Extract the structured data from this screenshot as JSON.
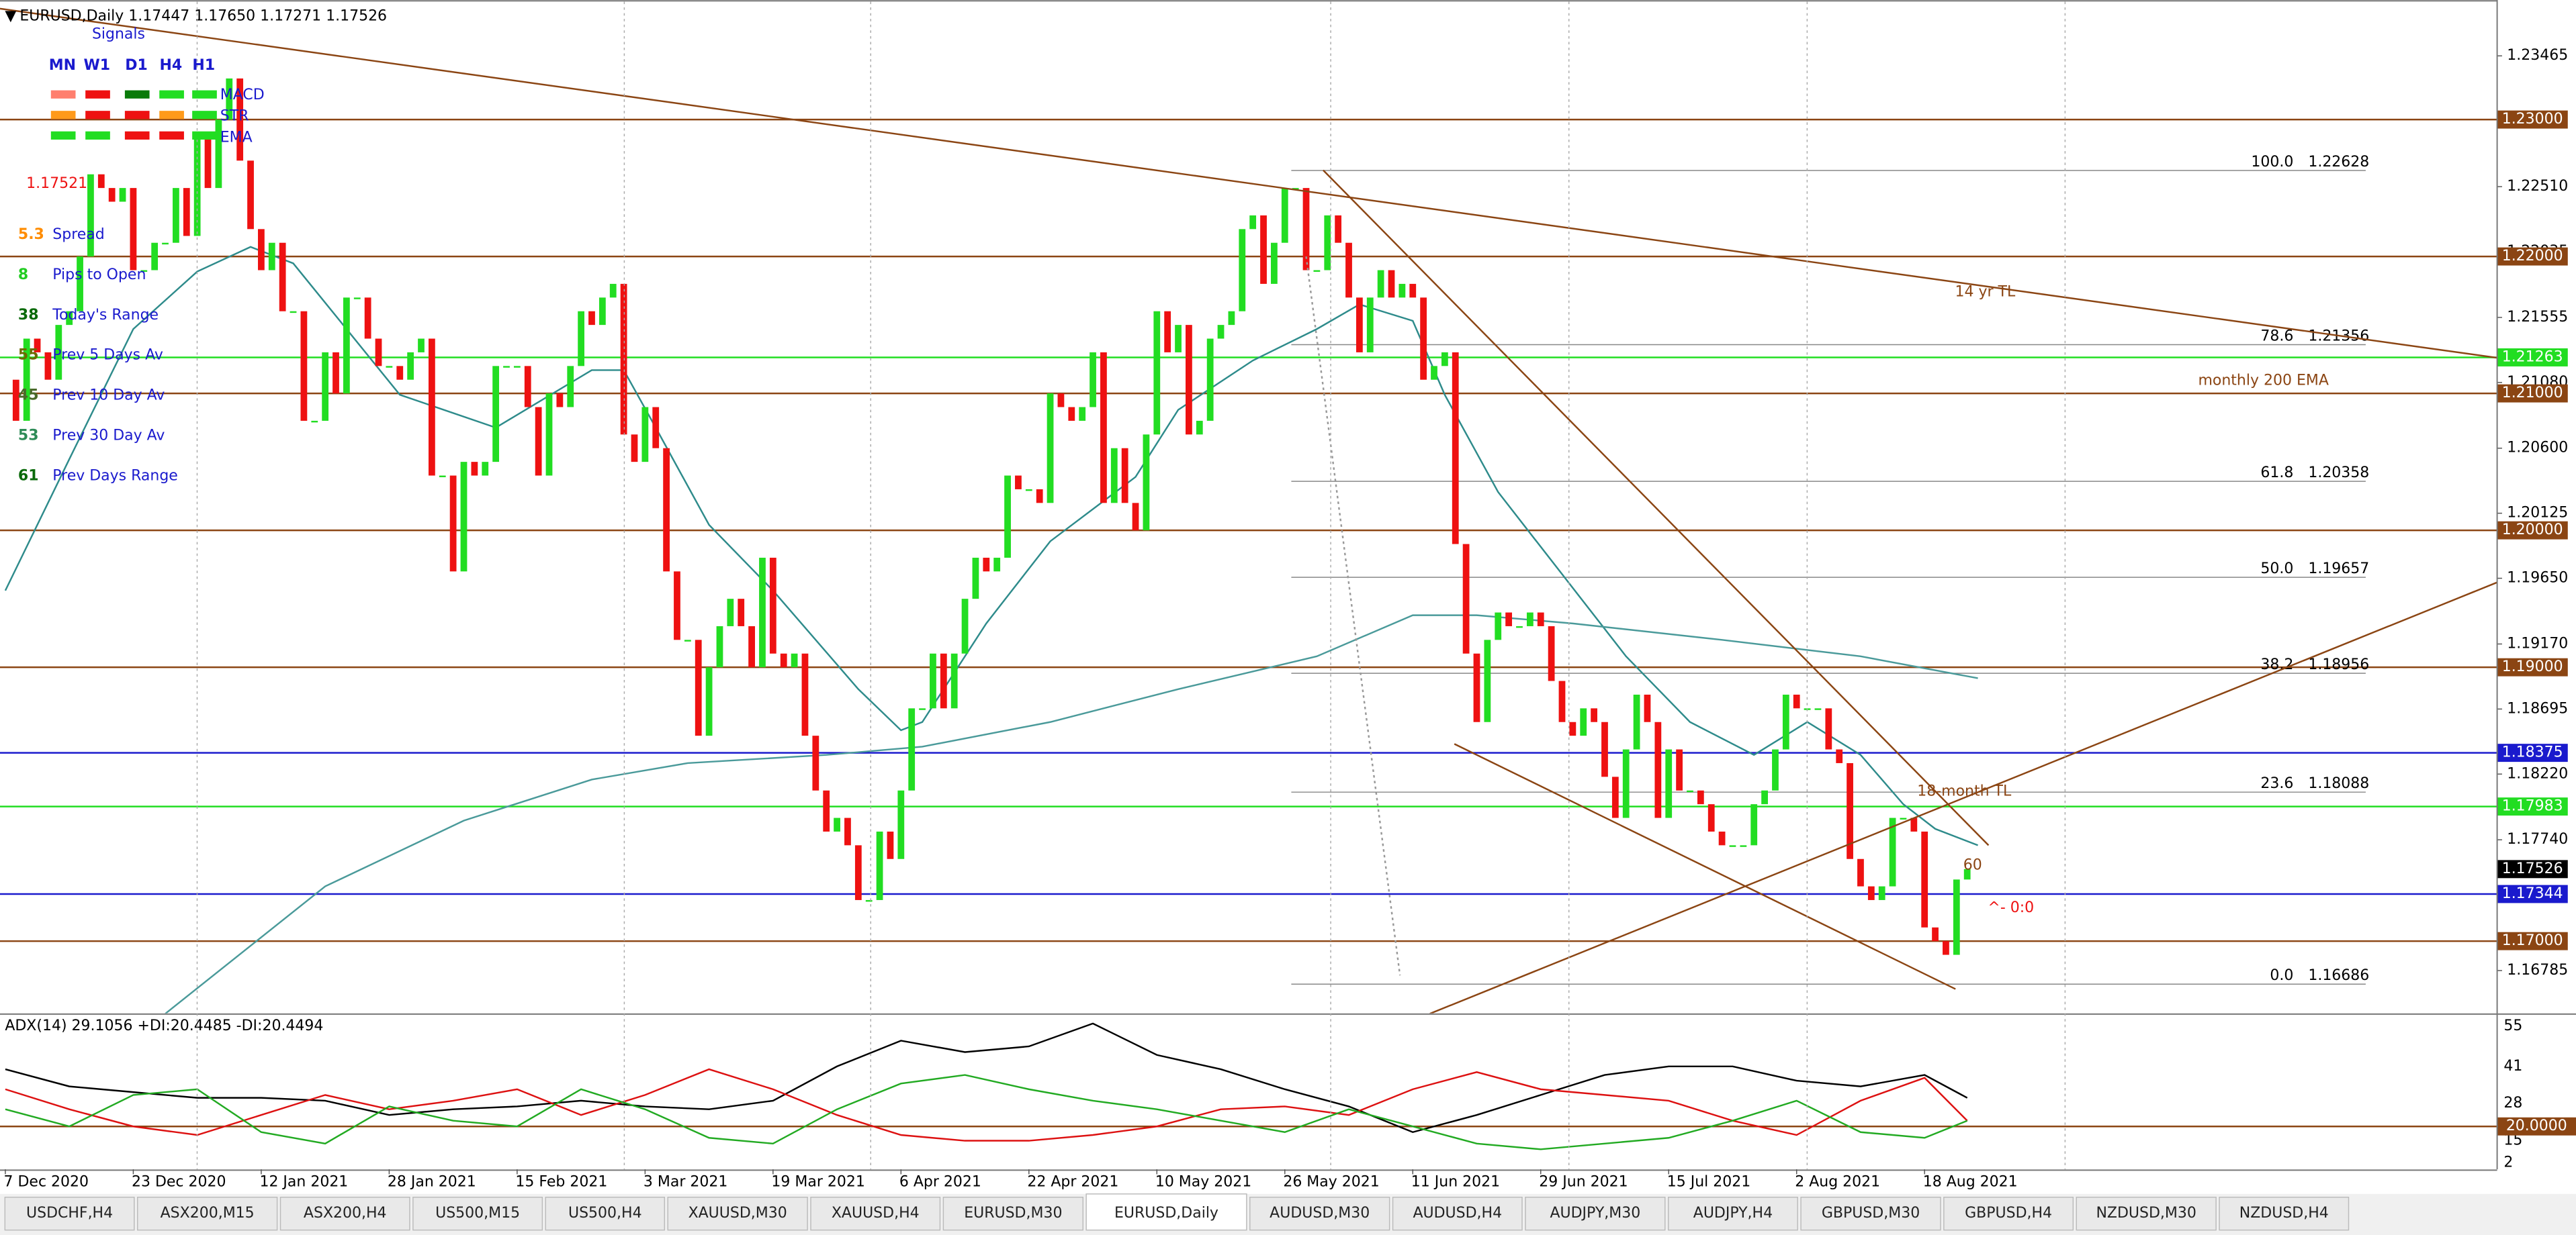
{
  "header": {
    "symbol_line": "EURUSD,Daily  1.17447 1.17650 1.17271 1.17526"
  },
  "signals": {
    "title": "Signals",
    "timeframes": [
      "MN",
      "W1",
      "D1",
      "H4",
      "H1"
    ],
    "rows": [
      "MACD",
      "STR",
      "EMA"
    ],
    "price": 1.17521,
    "stats": [
      {
        "value": 5.3,
        "label": "Spread"
      },
      {
        "value": 8,
        "label": "Pips to Open"
      },
      {
        "value": 38,
        "label": "Today's Range"
      },
      {
        "value": 55,
        "label": "Prev 5 Days Av"
      },
      {
        "value": 45,
        "label": "Prev 10 Day Av"
      },
      {
        "value": 53,
        "label": "Prev 30 Day Av"
      },
      {
        "value": 61,
        "label": "Prev Days Range"
      }
    ]
  },
  "chart_data": [
    {
      "type": "candlestick",
      "up_color": "#22dd22",
      "down_color": "#ee1111",
      "close": [
        1.211,
        1.208,
        1.214,
        1.213,
        1.211,
        1.215,
        1.216,
        1.22,
        1.226,
        1.225,
        1.224,
        1.225,
        1.219,
        1.219,
        1.221,
        1.221,
        1.225,
        1.2215,
        1.229,
        1.225,
        1.23,
        1.233,
        1.227,
        1.222,
        1.219,
        1.221,
        1.216,
        1.216,
        1.208,
        1.208,
        1.213,
        1.21,
        1.217,
        1.217,
        1.214,
        1.212,
        1.212,
        1.211,
        1.213,
        1.214,
        1.204,
        1.204,
        1.197,
        1.205,
        1.204,
        1.205,
        1.212,
        1.212,
        1.212,
        1.209,
        1.204,
        1.21,
        1.209,
        1.212,
        1.216,
        1.215,
        1.217,
        1.218,
        1.207,
        1.205,
        1.209,
        1.206,
        1.197,
        1.192,
        1.192,
        1.185,
        1.19,
        1.193,
        1.195,
        1.193,
        1.19,
        1.198,
        1.191,
        1.19,
        1.191,
        1.185,
        1.181,
        1.178,
        1.179,
        1.177,
        1.173,
        1.173,
        1.178,
        1.176,
        1.181,
        1.187,
        1.187,
        1.191,
        1.187,
        1.191,
        1.195,
        1.198,
        1.197,
        1.198,
        1.204,
        1.203,
        1.203,
        1.202,
        1.21,
        1.209,
        1.208,
        1.209,
        1.213,
        1.202,
        1.206,
        1.202,
        1.2,
        1.207,
        1.216,
        1.213,
        1.215,
        1.207,
        1.208,
        1.214,
        1.215,
        1.216,
        1.222,
        1.223,
        1.218,
        1.221,
        1.225,
        1.225,
        1.219,
        1.219,
        1.223,
        1.221,
        1.217,
        1.213,
        1.217,
        1.219,
        1.217,
        1.218,
        1.217,
        1.211,
        1.212,
        1.213,
        1.199,
        1.191,
        1.186,
        1.192,
        1.194,
        1.193,
        1.193,
        1.194,
        1.193,
        1.189,
        1.186,
        1.185,
        1.187,
        1.186,
        1.182,
        1.179,
        1.184,
        1.188,
        1.186,
        1.179,
        1.184,
        1.181,
        1.181,
        1.18,
        1.178,
        1.177,
        1.177,
        1.177,
        1.18,
        1.181,
        1.184,
        1.188,
        1.187,
        1.187,
        1.187,
        1.184,
        1.183,
        1.176,
        1.174,
        1.173,
        1.174,
        1.179,
        1.179,
        1.178,
        1.171,
        1.17,
        1.169,
        1.1745,
        1.17526
      ],
      "xlim": [
        -0.5,
        233.7
      ],
      "ylim": [
        1.16473,
        1.23873
      ],
      "yticks": [
        1.23465,
        {
          "value": 1.2251,
          "label": "1.22510"
        },
        1.22035,
        1.21555,
        {
          "value": 1.2108,
          "label": "1.21080"
        },
        {
          "value": 1.206,
          "label": "1.20600"
        },
        1.20125,
        {
          "value": 1.1965,
          "label": "1.19650"
        },
        {
          "value": 1.1917,
          "label": "1.19170"
        },
        1.18695,
        {
          "value": 1.1822,
          "label": "1.18220"
        },
        {
          "value": 1.1774,
          "label": "1.17740"
        },
        1.16785
      ],
      "xticks": [
        {
          "value": 0,
          "label": "7 Dec 2020"
        },
        {
          "value": 12,
          "label": "23 Dec 2020"
        },
        {
          "value": 24,
          "label": "12 Jan 2021"
        },
        {
          "value": 36,
          "label": "28 Jan 2021"
        },
        {
          "value": 48,
          "label": "15 Feb 2021"
        },
        {
          "value": 60,
          "label": "3 Mar 2021"
        },
        {
          "value": 72,
          "label": "19 Mar 2021"
        },
        {
          "value": 84,
          "label": "6 Apr 2021"
        },
        {
          "value": 96,
          "label": "22 Apr 2021"
        },
        {
          "value": 108,
          "label": "10 May 2021"
        },
        {
          "value": 120,
          "label": "26 May 2021"
        },
        {
          "value": 132,
          "label": "11 Jun 2021"
        },
        {
          "value": 144,
          "label": "29 Jun 2021"
        },
        {
          "value": 156,
          "label": "15 Jul 2021"
        },
        {
          "value": 168,
          "label": "2 Aug 2021"
        },
        {
          "value": 180,
          "label": "18 Aug 2021"
        }
      ],
      "levels": [
        {
          "value": 1.23,
          "label": "1.23000",
          "color": "#8b4513"
        },
        {
          "value": 1.22,
          "label": "1.22000",
          "color": "#8b4513"
        },
        {
          "value": 1.21263,
          "color": "#22dd22"
        },
        {
          "value": 1.21,
          "label": "1.21000",
          "color": "#8b4513"
        },
        {
          "value": 1.2,
          "label": "1.20000",
          "color": "#8b4513"
        },
        {
          "value": 1.19,
          "label": "1.19000",
          "color": "#8b4513"
        },
        {
          "value": 1.18375,
          "color": "#1a1acd"
        },
        {
          "value": 1.17983,
          "color": "#22dd22"
        },
        {
          "value": 1.17526,
          "color": "#000000",
          "line": false
        },
        {
          "value": 1.17344,
          "color": "#1a1acd"
        },
        {
          "value": 1.17,
          "label": "1.17000",
          "color": "#8b4513"
        }
      ],
      "fib": [
        {
          "label": "100.0",
          "value": 1.22628
        },
        {
          "label": "78.6",
          "value": 1.21356
        },
        {
          "label": "61.8",
          "value": 1.20358
        },
        {
          "label": "50.0",
          "value": 1.19657
        },
        {
          "label": "38.2",
          "value": 1.18956
        },
        {
          "label": "23.6",
          "value": 1.18088
        },
        {
          "label": "0.0",
          "value": 1.16686
        }
      ],
      "trendlines": [
        {
          "x": [
            -0.5,
            233.7
          ],
          "y": [
            1.2381,
            1.2126
          ],
          "color": "#8b4513"
        },
        {
          "x": [
            123.6,
            186
          ],
          "y": [
            1.2263,
            1.177
          ],
          "color": "#8b4513"
        },
        {
          "x": [
            133.6,
            233.7
          ],
          "y": [
            1.1647,
            1.1962
          ],
          "color": "#8b4513"
        },
        {
          "x": [
            135.9,
            182.9
          ],
          "y": [
            1.1844,
            1.1665
          ],
          "color": "#8b4513"
        },
        {
          "x": [
            122,
            130.8
          ],
          "y": [
            1.22,
            1.1675
          ],
          "color": "#999999",
          "style": "dotted"
        }
      ],
      "lines": [
        {
          "color": "#2e8b8b",
          "x": [
            0,
            6,
            12,
            18,
            23,
            27,
            37,
            46,
            55,
            58,
            61,
            66,
            72,
            80,
            84,
            86,
            92,
            98,
            106,
            110,
            117,
            123,
            127,
            132,
            135,
            140,
            146,
            152,
            158,
            164,
            169,
            174,
            178,
            181,
            185
          ],
          "values": [
            1.1956,
            1.2052,
            1.2147,
            1.2189,
            1.2207,
            1.2195,
            1.2099,
            1.2075,
            1.2117,
            1.2117,
            1.2075,
            1.2004,
            1.1956,
            1.1884,
            1.1854,
            1.186,
            1.1932,
            1.1992,
            1.2039,
            1.2088,
            1.2124,
            1.2147,
            1.2165,
            1.2153,
            1.2099,
            1.2028,
            1.1968,
            1.1908,
            1.186,
            1.1836,
            1.186,
            1.1836,
            1.18,
            1.1782,
            1.177
          ]
        },
        {
          "color": "#4a9a9a",
          "x": [
            15,
            30,
            43,
            55,
            64,
            77,
            86,
            98,
            110,
            123,
            132,
            138,
            147,
            161,
            174,
            185
          ],
          "values": [
            1.1647,
            1.174,
            1.1788,
            1.1818,
            1.183,
            1.1836,
            1.1842,
            1.186,
            1.1884,
            1.1908,
            1.1938,
            1.1938,
            1.1932,
            1.192,
            1.1908,
            1.1892
          ]
        }
      ],
      "annotations": [
        {
          "text": "14 yr TL",
          "color": "#8b4513"
        },
        {
          "text": "monthly 200 EMA",
          "color": "#8b4513"
        },
        {
          "text": "18-month TL",
          "color": "#8b4513"
        },
        {
          "text": "60",
          "color": "#8b4513"
        },
        {
          "text": "^- 0:0",
          "color": "#ee1111"
        }
      ]
    },
    {
      "type": "line",
      "title": "ADX(14) 29.1056 +DI:20.4485 -DI:20.4494",
      "x": [
        0,
        6,
        12,
        18,
        24,
        30,
        36,
        42,
        48,
        54,
        60,
        66,
        72,
        78,
        84,
        90,
        96,
        102,
        108,
        114,
        120,
        126,
        132,
        138,
        144,
        150,
        156,
        162,
        168,
        174,
        180,
        184
      ],
      "series": [
        {
          "color": "#000000",
          "values": [
            40,
            34,
            32,
            30,
            30,
            29,
            24,
            26,
            27,
            29,
            27,
            26,
            29,
            41,
            50,
            46,
            48,
            56,
            45,
            40,
            33,
            27,
            18,
            24,
            31,
            38,
            41,
            41,
            36,
            34,
            38,
            30
          ]
        },
        {
          "color": "#dd1111",
          "values": [
            33,
            26,
            20,
            17,
            24,
            31,
            26,
            29,
            33,
            24,
            31,
            40,
            33,
            24,
            17,
            15,
            15,
            17,
            20,
            26,
            27,
            24,
            33,
            39,
            33,
            31,
            29,
            22,
            17,
            29,
            37,
            22
          ]
        },
        {
          "color": "#22aa22",
          "values": [
            26,
            20,
            31,
            33,
            18,
            14,
            27,
            22,
            20,
            33,
            26,
            16,
            14,
            26,
            35,
            38,
            33,
            29,
            26,
            22,
            18,
            26,
            20,
            14,
            12,
            14,
            16,
            22,
            29,
            18,
            16,
            22
          ]
        }
      ],
      "ylim": [
        5,
        59
      ],
      "yticks": [
        55,
        41,
        28,
        15,
        2
      ],
      "level": {
        "value": 20,
        "label": "20.0000",
        "color": "#8b4513"
      }
    }
  ],
  "tabs": [
    "USDCHF,H4",
    "ASX200,M15",
    "ASX200,H4",
    "US500,M15",
    "US500,H4",
    "XAUUSD,M30",
    "XAUUSD,H4",
    "EURUSD,M30",
    "EURUSD,Daily",
    "AUDUSD,M30",
    "AUDUSD,H4",
    "AUDJPY,M30",
    "AUDJPY,H4",
    "GBPUSD,M30",
    "GBPUSD,H4",
    "NZDUSD,M30",
    "NZDUSD,H4"
  ],
  "active_tab": 8
}
